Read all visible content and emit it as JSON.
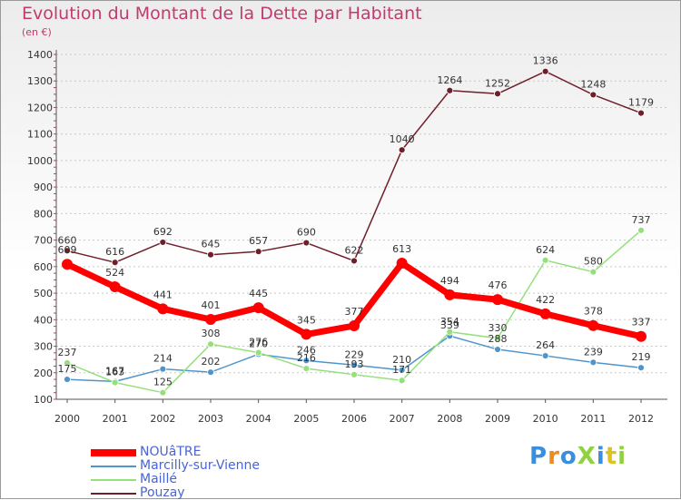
{
  "title": "Evolution du Montant de la Dette par Habitant",
  "subtitle": "(en €)",
  "logo": "ProXiti",
  "chart_data": {
    "type": "line",
    "title": "Evolution du Montant de la Dette par Habitant",
    "ylabel": "(en €)",
    "xlabel": "",
    "categories": [
      "2000",
      "2001",
      "2002",
      "2003",
      "2004",
      "2005",
      "2006",
      "2007",
      "2008",
      "2009",
      "2010",
      "2011",
      "2012"
    ],
    "ylim": [
      100,
      1400
    ],
    "yticks": [
      100,
      200,
      300,
      400,
      500,
      600,
      700,
      800,
      900,
      1000,
      1100,
      1200,
      1300,
      1400
    ],
    "grid": "horizontal dashed",
    "legend_placement": "bottom-left",
    "series": [
      {
        "name": "NOUâTRE",
        "color": "#ff0000",
        "values": [
          609,
          524,
          441,
          401,
          445,
          345,
          377,
          613,
          494,
          476,
          422,
          378,
          337
        ]
      },
      {
        "name": "Marcilly-sur-Vienne",
        "color": "#4f95cc",
        "values": [
          175,
          167,
          214,
          202,
          270,
          246,
          229,
          210,
          339,
          288,
          264,
          239,
          219
        ]
      },
      {
        "name": "Maillé",
        "color": "#94e07a",
        "values": [
          237,
          163,
          125,
          308,
          276,
          216,
          193,
          171,
          354,
          330,
          624,
          580,
          737
        ]
      },
      {
        "name": "Pouzay",
        "color": "#6f1f2a",
        "values": [
          660,
          616,
          692,
          645,
          657,
          690,
          622,
          1040,
          1264,
          1252,
          1336,
          1248,
          1179
        ]
      }
    ]
  }
}
